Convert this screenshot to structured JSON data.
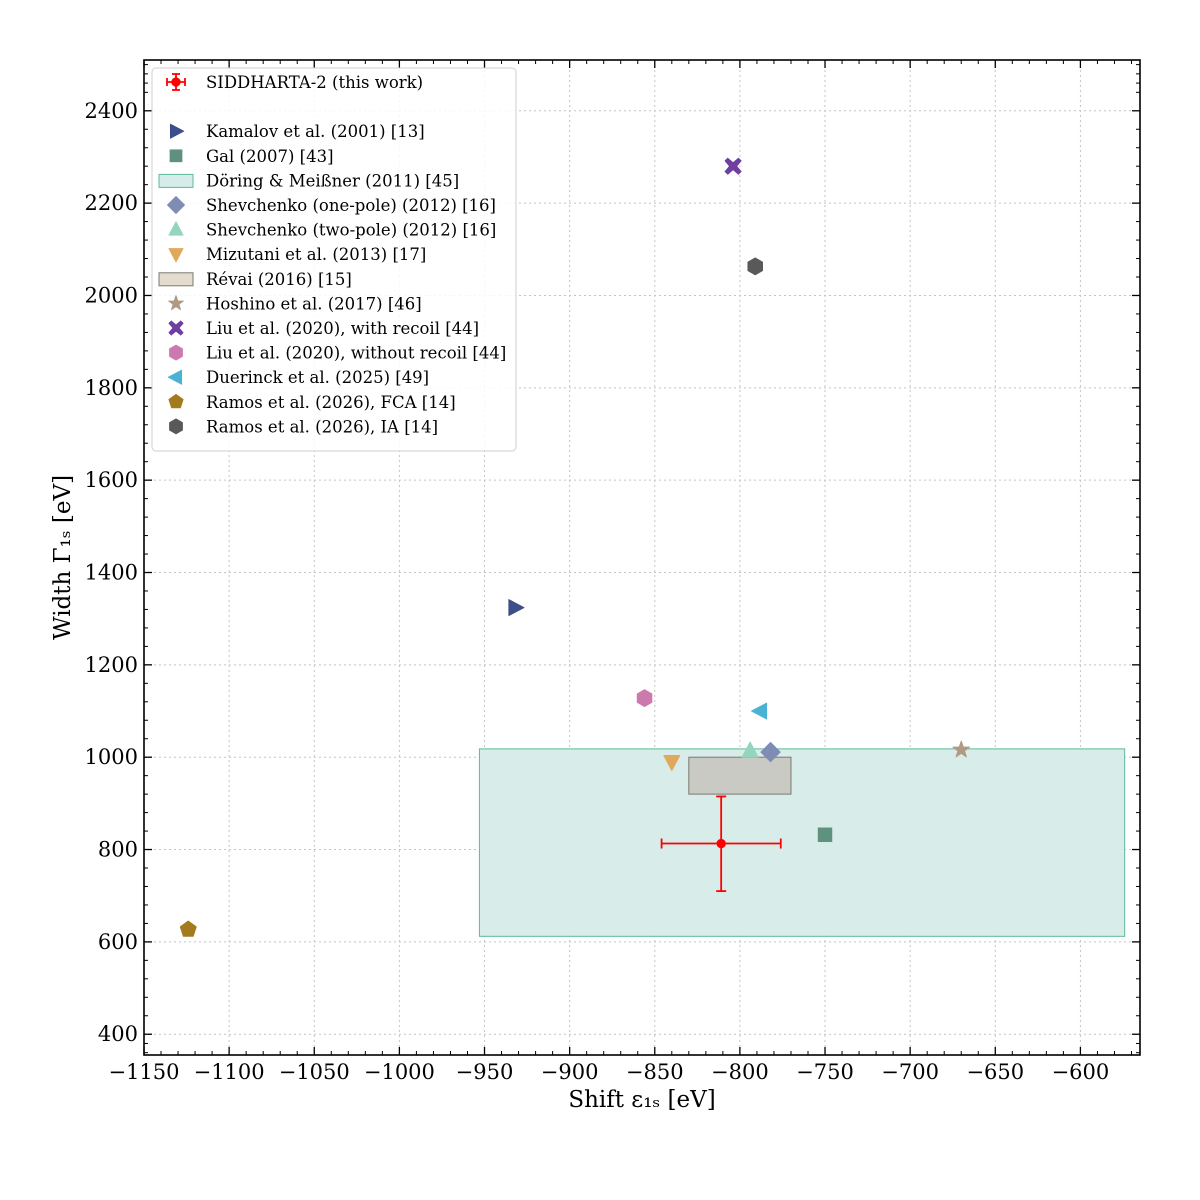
{
  "chart_data": {
    "type": "scatter",
    "title": "",
    "xlabel": "Shift ε₁ₛ [eV]",
    "ylabel": "Width Γ₁ₛ [eV]",
    "xlim": [
      -1150,
      -565
    ],
    "ylim": [
      355,
      2510
    ],
    "xticks": [
      -1150,
      -1100,
      -1050,
      -1000,
      -950,
      -900,
      -850,
      -800,
      -750,
      -700,
      -650,
      -600
    ],
    "yticks": [
      400,
      600,
      800,
      1000,
      1200,
      1400,
      1600,
      1800,
      2000,
      2200,
      2400
    ],
    "xtick_labels": [
      "−1150",
      "−1100",
      "−1050",
      "−1000",
      "−950",
      "−900",
      "−850",
      "−800",
      "−750",
      "−700",
      "−650",
      "−600"
    ],
    "ytick_labels": [
      "400",
      "600",
      "800",
      "1000",
      "1200",
      "1400",
      "1600",
      "1800",
      "2000",
      "2200",
      "2400"
    ],
    "grid": true,
    "legend_position": "top-left",
    "series": [
      {
        "name": "SIDDHARTA-2 (this work)",
        "kind": "errorbar",
        "marker": "circle",
        "color": "#ff0000",
        "x": -811,
        "y": 813,
        "xerr": [
          35,
          35
        ],
        "yerr": [
          103,
          102
        ]
      },
      {
        "kind": "spacer"
      },
      {
        "name": "Kamalov et al. (2001) [13]",
        "kind": "point",
        "marker": "triangle-right",
        "color": "#3d4f8a",
        "x": -932,
        "y": 1324
      },
      {
        "name": "Gal (2007) [43]",
        "kind": "point",
        "marker": "square",
        "color": "#5e917e",
        "x": -750,
        "y": 832
      },
      {
        "name": "Döring & Meißner (2011) [45]",
        "kind": "band",
        "color": "#d6ece8",
        "edge": "#5fb99c",
        "x": [
          -953,
          -574
        ],
        "y": [
          612,
          1018
        ]
      },
      {
        "name": "Shevchenko (one-pole) (2012) [16]",
        "kind": "point",
        "marker": "diamond",
        "color": "#7f8db5",
        "x": -782,
        "y": 1011
      },
      {
        "name": "Shevchenko (two-pole) (2012) [16]",
        "kind": "point",
        "marker": "triangle-up",
        "color": "#93d5bd",
        "x": -794,
        "y": 1014
      },
      {
        "name": "Mizutani et al. (2013) [17]",
        "kind": "point",
        "marker": "triangle-down",
        "color": "#e0a85a",
        "x": -840,
        "y": 990
      },
      {
        "name": "Révai (2016) [15]",
        "kind": "band",
        "color": "#c8c8c2",
        "edge": "#7a7a72",
        "legend_fill": "#e3dccf",
        "x": [
          -830,
          -770
        ],
        "y": [
          920,
          1000
        ]
      },
      {
        "name": "Hoshino et al. (2017) [46]",
        "kind": "point",
        "marker": "star",
        "color": "#b09a84",
        "x": -670,
        "y": 1016
      },
      {
        "name": "Liu et al. (2020), with recoil [44]",
        "kind": "point",
        "marker": "x",
        "color": "#6e3ea0",
        "x": -804,
        "y": 2280
      },
      {
        "name": "Liu et al. (2020), without recoil [44]",
        "kind": "point",
        "marker": "hexagon",
        "color": "#cc7aae",
        "x": -856,
        "y": 1128
      },
      {
        "name": "Duerinck et al. (2025) [49]",
        "kind": "point",
        "marker": "triangle-left",
        "color": "#4ab3d4",
        "x": -788,
        "y": 1100
      },
      {
        "name": "Ramos et al. (2026), FCA [14]",
        "kind": "point",
        "marker": "pentagon",
        "color": "#a37a1e",
        "x": -1124,
        "y": 627
      },
      {
        "name": "Ramos et al. (2026), IA [14]",
        "kind": "point",
        "marker": "hexagon",
        "color": "#595959",
        "x": -791,
        "y": 2063
      }
    ]
  }
}
